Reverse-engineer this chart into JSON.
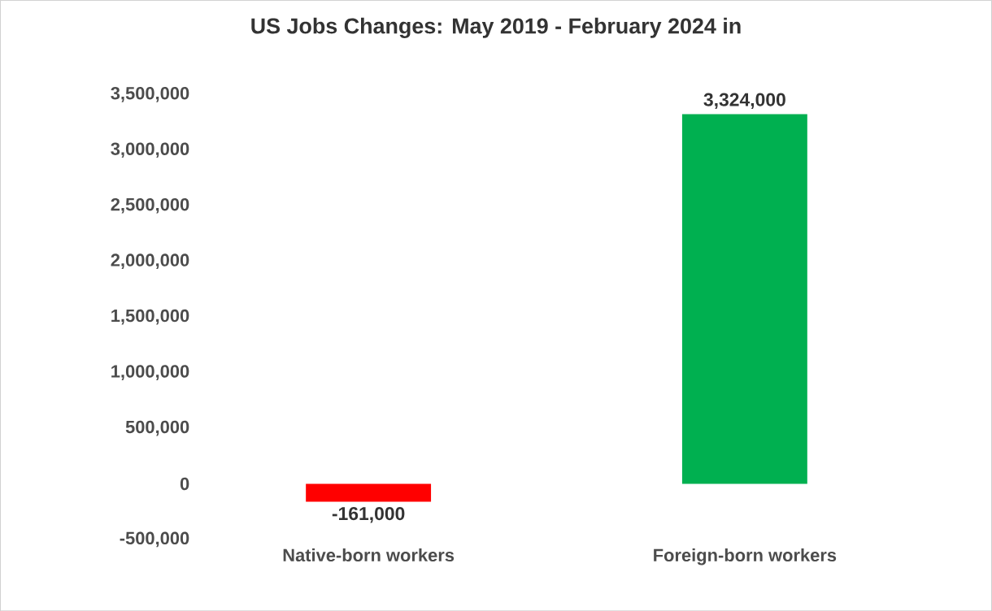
{
  "chart_data": {
    "type": "bar",
    "title": "US Jobs Changes: May 2019 - February 2024 in",
    "categories": [
      "Native-born workers",
      "Foreign-born workers"
    ],
    "values": [
      -161000,
      3324000
    ],
    "colors": [
      "#ff0000",
      "#00b050"
    ],
    "value_labels": [
      "-161,000",
      "3,324,000"
    ],
    "ylim": [
      -500000,
      3500000
    ],
    "yticks": [
      {
        "value": -500000,
        "label": "-500,000"
      },
      {
        "value": 0,
        "label": "0"
      },
      {
        "value": 500000,
        "label": "500,000"
      },
      {
        "value": 1000000,
        "label": "1,000,000"
      },
      {
        "value": 1500000,
        "label": "1,500,000"
      },
      {
        "value": 2000000,
        "label": "2,000,000"
      },
      {
        "value": 2500000,
        "label": "2,500,000"
      },
      {
        "value": 3000000,
        "label": "3,000,000"
      },
      {
        "value": 3500000,
        "label": "3,500,000"
      }
    ]
  }
}
